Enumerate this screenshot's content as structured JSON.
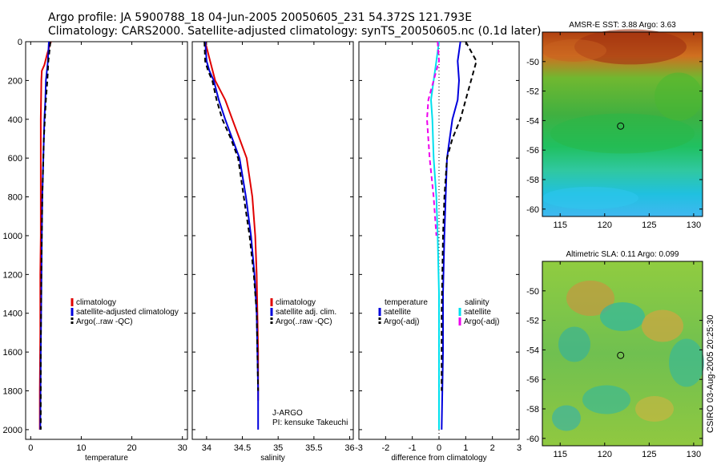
{
  "title_line1": "Argo profile: JA 5900788_18 04-Jun-2005 20050605_231 54.372S 121.793E",
  "title_line2": "Climatology: CARS2000. Satellite-adjusted climatology: synTS_20050605.nc (0.1d later)",
  "credit": "CSIRO 03-Aug-2005 20:25:30",
  "colors": {
    "red": "#e00000",
    "blue": "#0000dd",
    "black": "#000000",
    "cyan": "#00e0ee",
    "magenta": "#ee00ee"
  },
  "chart_data": [
    {
      "type": "line",
      "xlabel": "temperature",
      "xlim": [
        -1,
        31
      ],
      "ylim": [
        2050,
        0
      ],
      "xticks": [
        0,
        10,
        20,
        30
      ],
      "yticks": [
        0,
        200,
        400,
        600,
        800,
        1000,
        1200,
        1400,
        1600,
        1800,
        2000
      ],
      "legend": [
        "climatology",
        "satellite-adjusted climatology",
        "Argo(..raw -QC)"
      ],
      "series": [
        {
          "name": "climatology",
          "color": "red",
          "style": "solid",
          "x": [
            4.0,
            3.3,
            2.7,
            2.2,
            2.1,
            2.0,
            2.0,
            2.0,
            2.0,
            1.9,
            1.9,
            1.8,
            1.8
          ],
          "y": [
            0,
            60,
            120,
            150,
            200,
            400,
            600,
            800,
            1000,
            1200,
            1500,
            1800,
            2000
          ]
        },
        {
          "name": "satellite-adjusted climatology",
          "color": "blue",
          "style": "solid",
          "x": [
            3.6,
            3.4,
            3.0,
            2.9,
            2.7,
            2.5,
            2.3,
            2.2,
            2.1,
            2.0,
            1.9
          ],
          "y": [
            0,
            100,
            200,
            300,
            400,
            600,
            800,
            1000,
            1300,
            1600,
            2000
          ]
        },
        {
          "name": "Argo(..raw -QC)",
          "color": "black",
          "style": "dashed",
          "x": [
            3.9,
            3.7,
            3.5,
            3.3,
            3.0,
            2.8,
            2.6,
            2.5,
            2.3,
            2.2,
            2.1,
            2.0,
            2.0
          ],
          "y": [
            0,
            50,
            100,
            200,
            300,
            400,
            500,
            600,
            800,
            1000,
            1200,
            1600,
            2000
          ]
        }
      ]
    },
    {
      "type": "line",
      "xlabel": "salinity",
      "xlim": [
        33.8,
        36.05
      ],
      "ylim": [
        2050,
        0
      ],
      "xticks": [
        34,
        34.5,
        35,
        35.5,
        36
      ],
      "legend": [
        "climatology",
        "satellite adj. clim.",
        "Argo(..raw -QC)"
      ],
      "annotations": [
        "J-ARGO",
        "PI: kensuke Takeuchi"
      ],
      "series": [
        {
          "name": "climatology",
          "color": "red",
          "style": "solid",
          "x": [
            33.98,
            34.05,
            34.12,
            34.26,
            34.36,
            34.46,
            34.56,
            34.64,
            34.68,
            34.7,
            34.71,
            34.72,
            34.72,
            34.72
          ],
          "y": [
            0,
            100,
            200,
            300,
            400,
            500,
            600,
            800,
            1000,
            1200,
            1400,
            1600,
            1800,
            1850
          ]
        },
        {
          "name": "satellite adj. clim.",
          "color": "blue",
          "style": "solid",
          "x": [
            33.98,
            34.0,
            34.04,
            34.1,
            34.17,
            34.26,
            34.36,
            34.46,
            34.55,
            34.62,
            34.67,
            34.7,
            34.71,
            34.72,
            34.72
          ],
          "y": [
            0,
            100,
            150,
            200,
            300,
            400,
            500,
            600,
            800,
            1000,
            1200,
            1400,
            1600,
            1800,
            2000
          ]
        },
        {
          "name": "Argo(..raw -QC)",
          "color": "black",
          "style": "dashed",
          "x": [
            33.97,
            33.98,
            34.02,
            34.08,
            34.14,
            34.22,
            34.34,
            34.44,
            34.52,
            34.6,
            34.66,
            34.7,
            34.71,
            34.72
          ],
          "y": [
            0,
            100,
            150,
            200,
            300,
            400,
            500,
            600,
            800,
            1000,
            1200,
            1400,
            1600,
            1800
          ]
        }
      ]
    },
    {
      "type": "line",
      "xlabel": "difference from climatology",
      "xlim": [
        -3,
        3
      ],
      "ylim": [
        2050,
        0
      ],
      "xticks": [
        -3,
        -2,
        -1,
        0,
        1,
        2,
        3
      ],
      "legend_left_title": "temperature",
      "legend_left": [
        "satellite",
        "Argo(-adj)"
      ],
      "legend_right_title": "salinity",
      "legend_right": [
        "satellite",
        "Argo(-adj)"
      ],
      "series": [
        {
          "name": "temperature satellite",
          "color": "blue",
          "style": "solid",
          "x": [
            0.8,
            0.7,
            0.75,
            0.7,
            0.5,
            0.4,
            0.3,
            0.25,
            0.2,
            0.15,
            0.15,
            0.1
          ],
          "y": [
            0,
            100,
            200,
            300,
            400,
            500,
            600,
            800,
            1000,
            1300,
            1600,
            2000
          ]
        },
        {
          "name": "temperature Argo(-adj)",
          "color": "black",
          "style": "dashed",
          "x": [
            1.0,
            1.4,
            1.2,
            1.0,
            0.8,
            0.5,
            0.3,
            0.2,
            0.15,
            0.1,
            0.1
          ],
          "y": [
            0,
            100,
            200,
            300,
            400,
            500,
            600,
            800,
            1000,
            1400,
            1800
          ]
        },
        {
          "name": "salinity satellite",
          "color": "cyan",
          "style": "solid",
          "x": [
            0.0,
            -0.1,
            -0.2,
            -0.3,
            -0.25,
            -0.2,
            -0.1,
            -0.05,
            0.0,
            0.0,
            0.0
          ],
          "y": [
            0,
            100,
            200,
            300,
            400,
            600,
            800,
            1000,
            1300,
            1600,
            2000
          ]
        },
        {
          "name": "salinity Argo(-adj)",
          "color": "magenta",
          "style": "dashed",
          "x": [
            -0.05,
            0.0,
            -0.2,
            -0.4,
            -0.45,
            -0.35,
            -0.2,
            -0.1
          ],
          "y": [
            0,
            100,
            200,
            300,
            400,
            600,
            800,
            1000
          ]
        }
      ]
    },
    {
      "type": "heatmap",
      "title": "AMSR-E SST: 3.88 Argo: 3.63",
      "xlim": [
        113,
        131
      ],
      "ylim": [
        -60.5,
        -48
      ],
      "xticks": [
        115,
        120,
        125,
        130
      ],
      "yticks": [
        -50,
        -52,
        -54,
        -56,
        -58,
        -60
      ],
      "marker": {
        "x": 121.793,
        "y": -54.372
      }
    },
    {
      "type": "heatmap",
      "title": "Altimetric SLA: 0.11 Argo: 0.099",
      "xlim": [
        113,
        131
      ],
      "ylim": [
        -60.5,
        -48
      ],
      "xticks": [
        115,
        120,
        125,
        130
      ],
      "yticks": [
        -50,
        -52,
        -54,
        -56,
        -58,
        -60
      ],
      "marker": {
        "x": 121.793,
        "y": -54.372
      }
    }
  ]
}
